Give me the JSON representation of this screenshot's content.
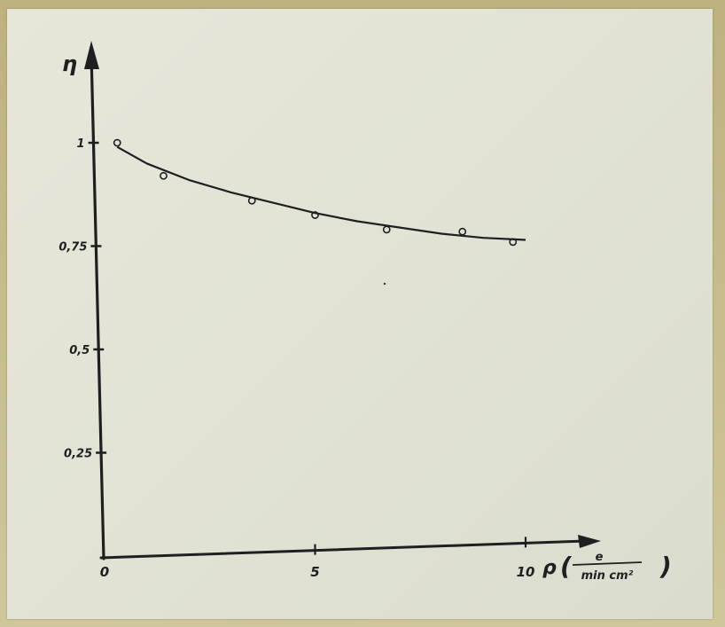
{
  "chart_data": {
    "type": "scatter",
    "title": "",
    "ylabel": "η",
    "xlabel": "ρ",
    "xlabel_unit_numerator": "e",
    "xlabel_unit_denominator": "min cm²",
    "x_ticks": [
      "0",
      "5",
      "10"
    ],
    "y_ticks": [
      "1",
      "0,75",
      "0,5",
      "0,25"
    ],
    "xlim": [
      0,
      10
    ],
    "ylim": [
      0,
      1
    ],
    "grid": false,
    "series": [
      {
        "points": [
          {
            "x": 0.3,
            "y": 1.0
          },
          {
            "x": 1.4,
            "y": 0.92
          },
          {
            "x": 3.5,
            "y": 0.86
          },
          {
            "x": 5.0,
            "y": 0.825
          },
          {
            "x": 6.7,
            "y": 0.79
          },
          {
            "x": 8.5,
            "y": 0.785
          },
          {
            "x": 9.7,
            "y": 0.76
          }
        ],
        "fit_curve": [
          {
            "x": 0.3,
            "y": 0.99
          },
          {
            "x": 1.0,
            "y": 0.95
          },
          {
            "x": 2.0,
            "y": 0.91
          },
          {
            "x": 3.0,
            "y": 0.88
          },
          {
            "x": 4.0,
            "y": 0.855
          },
          {
            "x": 5.0,
            "y": 0.83
          },
          {
            "x": 6.0,
            "y": 0.81
          },
          {
            "x": 7.0,
            "y": 0.795
          },
          {
            "x": 8.0,
            "y": 0.78
          },
          {
            "x": 9.0,
            "y": 0.77
          },
          {
            "x": 10.0,
            "y": 0.765
          }
        ]
      }
    ]
  }
}
